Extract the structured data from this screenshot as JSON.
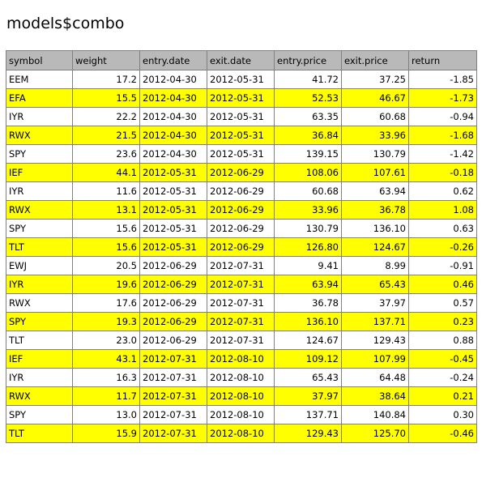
{
  "title": "models$combo",
  "columns": [
    "symbol",
    "weight",
    "entry.date",
    "exit.date",
    "entry.price",
    "exit.price",
    "return"
  ],
  "highlight_color": "#ffff00",
  "header_color": "#b9b9b9",
  "rows": [
    {
      "symbol": "EEM",
      "weight": "17.2",
      "entry_date": "2012-04-30",
      "exit_date": "2012-05-31",
      "entry_price": "41.72",
      "exit_price": "37.25",
      "return": "-1.85",
      "highlight": false
    },
    {
      "symbol": "EFA",
      "weight": "15.5",
      "entry_date": "2012-04-30",
      "exit_date": "2012-05-31",
      "entry_price": "52.53",
      "exit_price": "46.67",
      "return": "-1.73",
      "highlight": true
    },
    {
      "symbol": "IYR",
      "weight": "22.2",
      "entry_date": "2012-04-30",
      "exit_date": "2012-05-31",
      "entry_price": "63.35",
      "exit_price": "60.68",
      "return": "-0.94",
      "highlight": false
    },
    {
      "symbol": "RWX",
      "weight": "21.5",
      "entry_date": "2012-04-30",
      "exit_date": "2012-05-31",
      "entry_price": "36.84",
      "exit_price": "33.96",
      "return": "-1.68",
      "highlight": true
    },
    {
      "symbol": "SPY",
      "weight": "23.6",
      "entry_date": "2012-04-30",
      "exit_date": "2012-05-31",
      "entry_price": "139.15",
      "exit_price": "130.79",
      "return": "-1.42",
      "highlight": false
    },
    {
      "symbol": "IEF",
      "weight": "44.1",
      "entry_date": "2012-05-31",
      "exit_date": "2012-06-29",
      "entry_price": "108.06",
      "exit_price": "107.61",
      "return": "-0.18",
      "highlight": true
    },
    {
      "symbol": "IYR",
      "weight": "11.6",
      "entry_date": "2012-05-31",
      "exit_date": "2012-06-29",
      "entry_price": "60.68",
      "exit_price": "63.94",
      "return": "0.62",
      "highlight": false
    },
    {
      "symbol": "RWX",
      "weight": "13.1",
      "entry_date": "2012-05-31",
      "exit_date": "2012-06-29",
      "entry_price": "33.96",
      "exit_price": "36.78",
      "return": "1.08",
      "highlight": true
    },
    {
      "symbol": "SPY",
      "weight": "15.6",
      "entry_date": "2012-05-31",
      "exit_date": "2012-06-29",
      "entry_price": "130.79",
      "exit_price": "136.10",
      "return": "0.63",
      "highlight": false
    },
    {
      "symbol": "TLT",
      "weight": "15.6",
      "entry_date": "2012-05-31",
      "exit_date": "2012-06-29",
      "entry_price": "126.80",
      "exit_price": "124.67",
      "return": "-0.26",
      "highlight": true
    },
    {
      "symbol": "EWJ",
      "weight": "20.5",
      "entry_date": "2012-06-29",
      "exit_date": "2012-07-31",
      "entry_price": "9.41",
      "exit_price": "8.99",
      "return": "-0.91",
      "highlight": false
    },
    {
      "symbol": "IYR",
      "weight": "19.6",
      "entry_date": "2012-06-29",
      "exit_date": "2012-07-31",
      "entry_price": "63.94",
      "exit_price": "65.43",
      "return": "0.46",
      "highlight": true
    },
    {
      "symbol": "RWX",
      "weight": "17.6",
      "entry_date": "2012-06-29",
      "exit_date": "2012-07-31",
      "entry_price": "36.78",
      "exit_price": "37.97",
      "return": "0.57",
      "highlight": false
    },
    {
      "symbol": "SPY",
      "weight": "19.3",
      "entry_date": "2012-06-29",
      "exit_date": "2012-07-31",
      "entry_price": "136.10",
      "exit_price": "137.71",
      "return": "0.23",
      "highlight": true
    },
    {
      "symbol": "TLT",
      "weight": "23.0",
      "entry_date": "2012-06-29",
      "exit_date": "2012-07-31",
      "entry_price": "124.67",
      "exit_price": "129.43",
      "return": "0.88",
      "highlight": false
    },
    {
      "symbol": "IEF",
      "weight": "43.1",
      "entry_date": "2012-07-31",
      "exit_date": "2012-08-10",
      "entry_price": "109.12",
      "exit_price": "107.99",
      "return": "-0.45",
      "highlight": true
    },
    {
      "symbol": "IYR",
      "weight": "16.3",
      "entry_date": "2012-07-31",
      "exit_date": "2012-08-10",
      "entry_price": "65.43",
      "exit_price": "64.48",
      "return": "-0.24",
      "highlight": false
    },
    {
      "symbol": "RWX",
      "weight": "11.7",
      "entry_date": "2012-07-31",
      "exit_date": "2012-08-10",
      "entry_price": "37.97",
      "exit_price": "38.64",
      "return": "0.21",
      "highlight": true
    },
    {
      "symbol": "SPY",
      "weight": "13.0",
      "entry_date": "2012-07-31",
      "exit_date": "2012-08-10",
      "entry_price": "137.71",
      "exit_price": "140.84",
      "return": "0.30",
      "highlight": false
    },
    {
      "symbol": "TLT",
      "weight": "15.9",
      "entry_date": "2012-07-31",
      "exit_date": "2012-08-10",
      "entry_price": "129.43",
      "exit_price": "125.70",
      "return": "-0.46",
      "highlight": true
    }
  ]
}
